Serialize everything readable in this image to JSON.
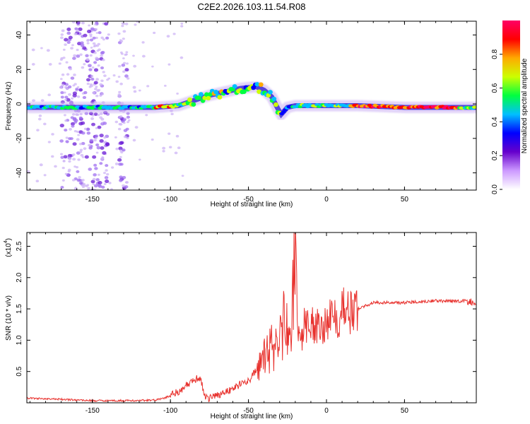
{
  "figure_title": "C2E2.2026.103.11.54.R08",
  "chart_data": [
    {
      "type": "heatmap",
      "title": "C2E2.2026.103.11.54.R08",
      "xlabel": "Height of straight line (km)",
      "ylabel": "Frequency (Hz)",
      "xlim": [
        -192,
        96
      ],
      "ylim": [
        -50,
        48
      ],
      "x_ticks": [
        -150,
        -100,
        -50,
        0,
        50
      ],
      "x_tick_labels": [
        "-150",
        "-100",
        "-50",
        "0",
        "50"
      ],
      "y_ticks": [
        -40,
        -20,
        0,
        20,
        40
      ],
      "y_tick_labels": [
        "-40",
        "-20",
        "0",
        "20",
        "40"
      ],
      "ridge": {
        "x": [
          -192,
          -150,
          -110,
          -95,
          -85,
          -75,
          -65,
          -55,
          -45,
          -40,
          -35,
          -31,
          -29,
          -27,
          -25,
          -20,
          0,
          20,
          50,
          80,
          96
        ],
        "y": [
          -2,
          -2,
          -2,
          -1,
          2,
          5,
          7,
          9,
          10,
          8,
          4,
          -3,
          -6,
          -4,
          -2,
          -1,
          -1,
          -1,
          -2,
          -2,
          -2
        ]
      },
      "scatter_bands_x": [
        [
          -170,
          -140
        ],
        [
          -133,
          -127
        ]
      ],
      "colorbar": {
        "label": "Normalized spectral amplitude",
        "range": [
          0,
          1
        ],
        "ticks": [
          0.0,
          0.2,
          0.4,
          0.6,
          0.8
        ],
        "tick_labels": [
          "0.0",
          "0.2",
          "0.4",
          "0.6",
          "0.8"
        ],
        "colors": [
          "#ffffff",
          "#cc99ff",
          "#6600cc",
          "#0000ff",
          "#00bfff",
          "#00ff40",
          "#ccff00",
          "#ffaa00",
          "#ff0000",
          "#ff0066"
        ]
      }
    },
    {
      "type": "line",
      "title": "",
      "xlabel": "Height of straight line (km)",
      "ylabel": "SNR (10 * v/v)",
      "scale_label": "(x10",
      "scale_exponent": "4",
      "xlim": [
        -192,
        96
      ],
      "ylim": [
        0,
        2.72
      ],
      "x_ticks": [
        -150,
        -100,
        -50,
        0,
        50
      ],
      "x_tick_labels": [
        "-150",
        "-100",
        "-50",
        "0",
        "50"
      ],
      "y_ticks": [
        0.5,
        1.0,
        1.5,
        2.0,
        2.5
      ],
      "y_tick_labels": [
        "0.5",
        "1.0",
        "1.5",
        "2.0",
        "2.5"
      ],
      "series": [
        {
          "name": "SNR",
          "color": "#e8322e",
          "x": [
            -192,
            -180,
            -170,
            -160,
            -150,
            -140,
            -130,
            -120,
            -110,
            -105,
            -100,
            -95,
            -90,
            -85,
            -82,
            -80,
            -78,
            -75,
            -70,
            -65,
            -60,
            -55,
            -50,
            -45,
            -42,
            -40,
            -38,
            -35,
            -33,
            -30,
            -28,
            -26,
            -24,
            -22,
            -21,
            -20,
            -19,
            -18,
            -16,
            -14,
            -12,
            -10,
            -8,
            -5,
            -2,
            0,
            3,
            6,
            9,
            11,
            12,
            15,
            20,
            25,
            30,
            40,
            50,
            60,
            70,
            80,
            90,
            96
          ],
          "y": [
            0.06,
            0.05,
            0.04,
            0.03,
            0.02,
            0.02,
            0.02,
            0.02,
            0.03,
            0.05,
            0.1,
            0.15,
            0.25,
            0.32,
            0.38,
            0.3,
            0.08,
            0.05,
            0.1,
            0.15,
            0.2,
            0.28,
            0.32,
            0.5,
            0.6,
            0.7,
            0.8,
            0.9,
            0.85,
            1.1,
            1.0,
            1.2,
            1.1,
            1.3,
            2.0,
            2.7,
            1.6,
            1.2,
            1.0,
            1.35,
            1.2,
            1.3,
            1.2,
            1.3,
            1.25,
            1.3,
            1.35,
            1.4,
            1.35,
            1.75,
            1.4,
            1.45,
            1.5,
            1.55,
            1.6,
            1.6,
            1.6,
            1.62,
            1.63,
            1.62,
            1.63,
            1.57
          ]
        }
      ]
    }
  ]
}
